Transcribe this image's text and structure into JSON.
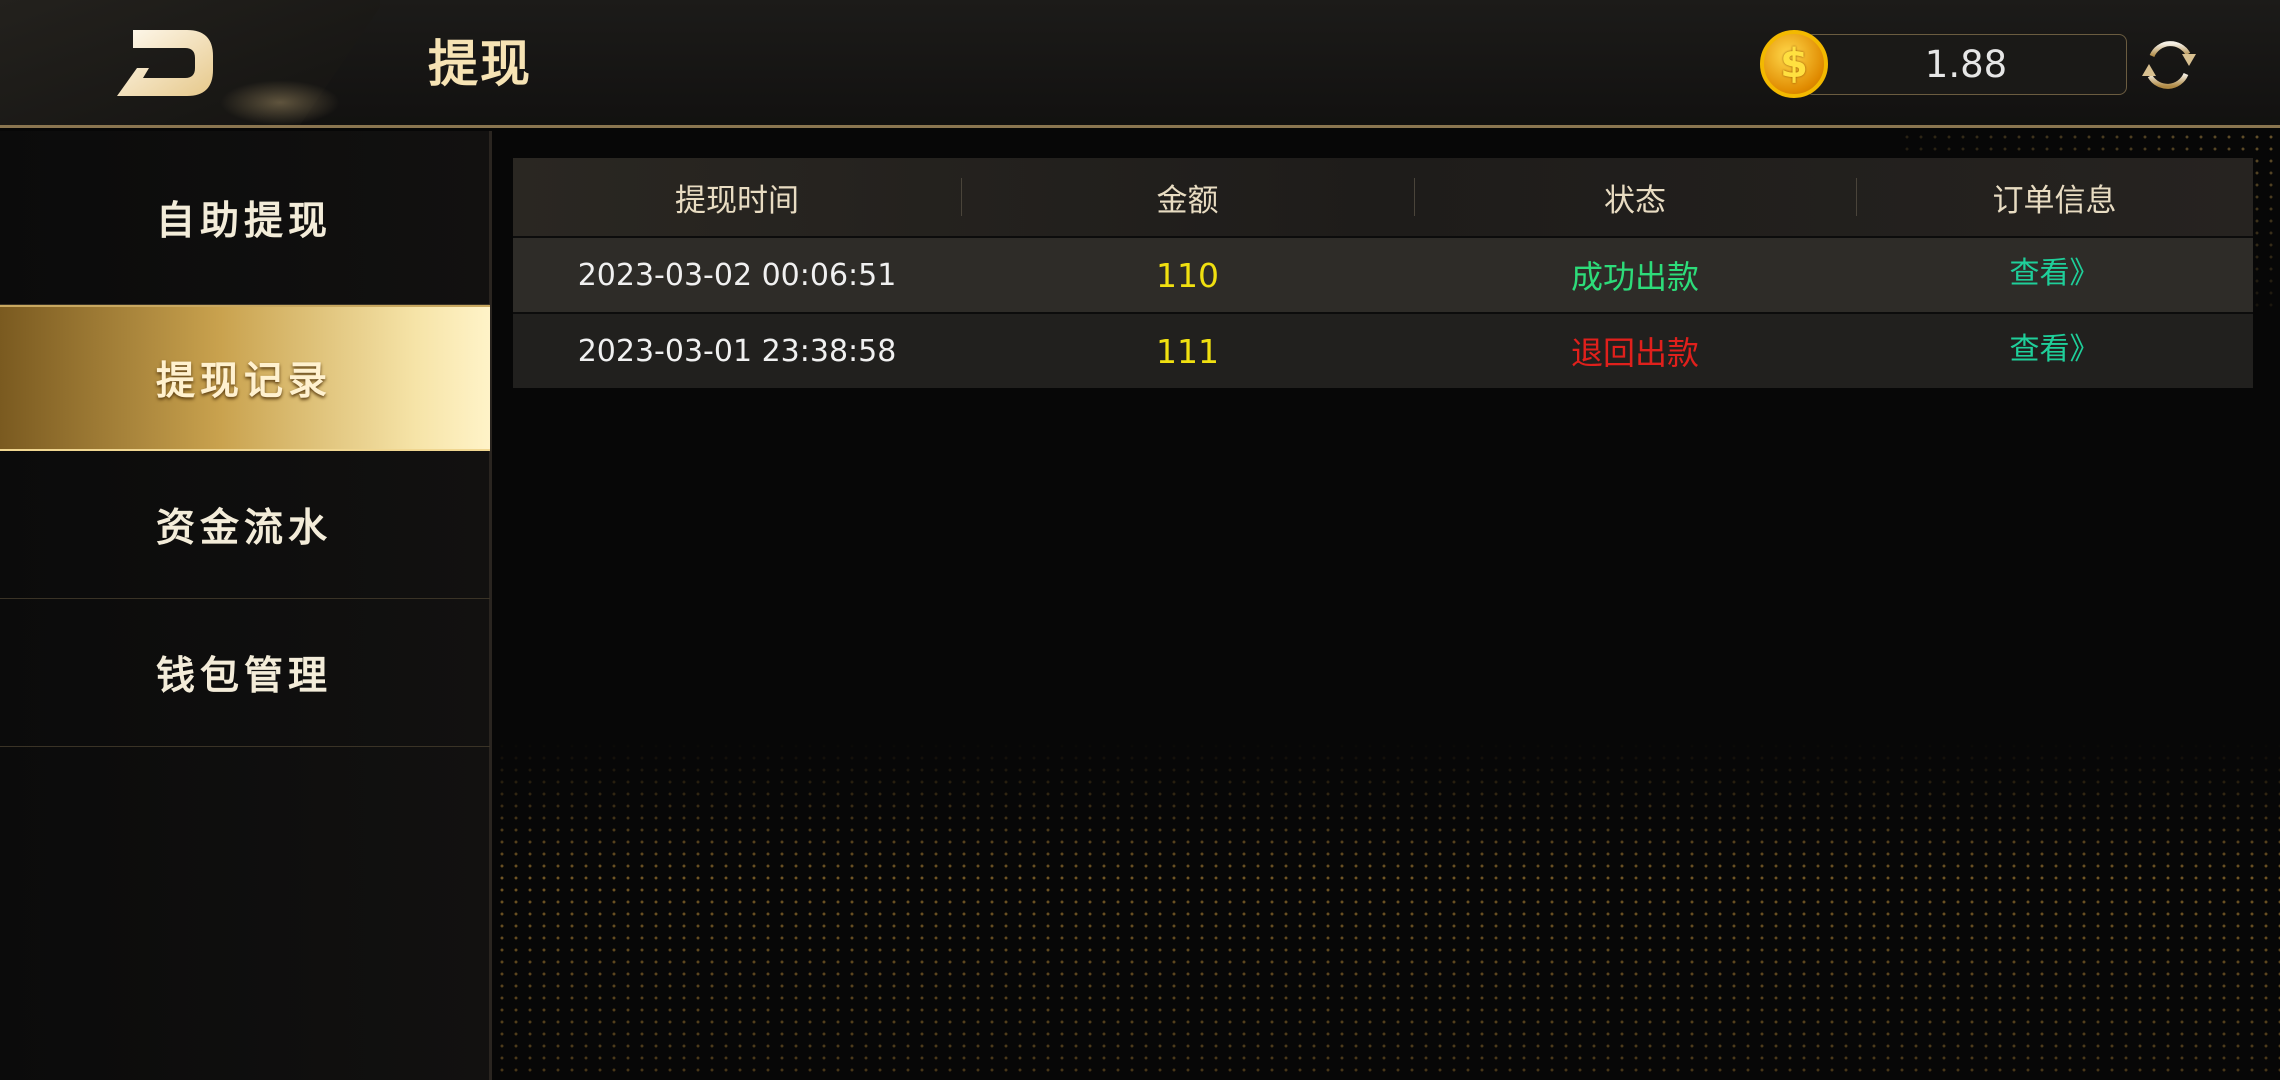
{
  "header": {
    "title": "提现",
    "balance": "1.88",
    "coin_icon": "dollar-coin-icon",
    "refresh_icon": "refresh-icon",
    "back_icon": "back-logo-icon"
  },
  "sidebar": {
    "items": [
      {
        "label": "自助提现",
        "active": false
      },
      {
        "label": "提现记录",
        "active": true
      },
      {
        "label": "资金流水",
        "active": false
      },
      {
        "label": "钱包管理",
        "active": false
      }
    ]
  },
  "table": {
    "columns": [
      "提现时间",
      "金额",
      "状态",
      "订单信息"
    ],
    "rows": [
      {
        "time": "2023-03-02 00:06:51",
        "amount": "110",
        "status": "成功出款",
        "status_color": "#2ddc7a",
        "action": "查看》"
      },
      {
        "time": "2023-03-01 23:38:58",
        "amount": "111",
        "status": "退回出款",
        "status_color": "#e0201c",
        "action": "查看》"
      }
    ]
  },
  "colors": {
    "amount": "#f0e010",
    "action": "#1fcf9a",
    "accent": "#c9a24e"
  }
}
